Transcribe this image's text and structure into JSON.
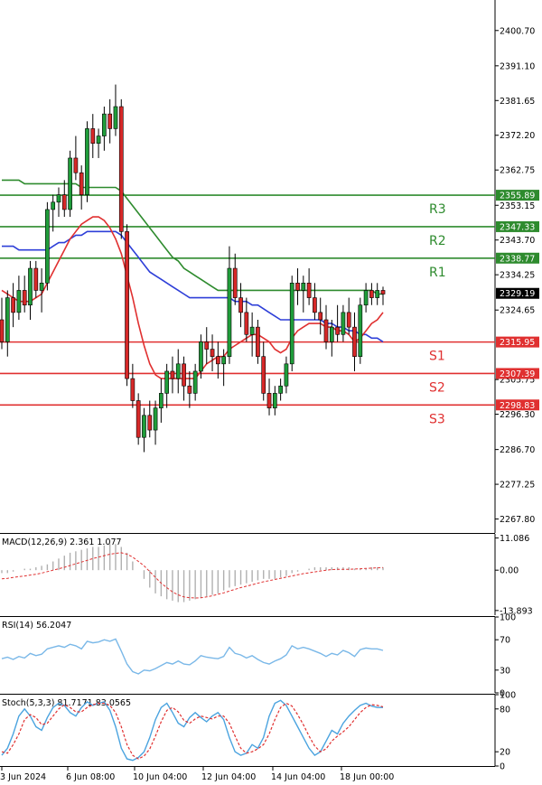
{
  "chart_data": {
    "type": "candlestick",
    "instrument_note": "",
    "price_axis": {
      "ylim": [
        2264.0,
        2409.0
      ],
      "tick_labels": [
        "2400.70",
        "2391.10",
        "2381.65",
        "2372.20",
        "2362.75",
        "2353.15",
        "2343.70",
        "2334.25",
        "2324.65",
        "2305.75",
        "2296.30",
        "2286.70",
        "2277.25",
        "2267.80"
      ],
      "tick_values": [
        2400.7,
        2391.1,
        2381.65,
        2372.2,
        2362.75,
        2353.15,
        2343.7,
        2334.25,
        2324.65,
        2305.75,
        2296.3,
        2286.7,
        2277.25,
        2267.8
      ]
    },
    "x_axis_labels": [
      "3 Jun 2024",
      "6 Jun 08:00",
      "10 Jun 04:00",
      "12 Jun 04:00",
      "14 Jun 04:00",
      "18 Jun 00:00"
    ],
    "current_price": {
      "value": 2329.19,
      "label": "2329.19",
      "color": "#000000"
    },
    "levels": [
      {
        "name": "R3",
        "value": 2355.89,
        "label": "2355.89",
        "color": "#2e8b2e"
      },
      {
        "name": "R2",
        "value": 2347.33,
        "label": "2347.33",
        "color": "#2e8b2e"
      },
      {
        "name": "R1",
        "value": 2338.77,
        "label": "2338.77",
        "color": "#2e8b2e"
      },
      {
        "name": "S1",
        "value": 2315.95,
        "label": "2315.95",
        "color": "#e03030"
      },
      {
        "name": "S2",
        "value": 2307.39,
        "label": "2307.39",
        "color": "#e03030"
      },
      {
        "name": "S3",
        "value": 2298.83,
        "label": "2298.83",
        "color": "#e03030"
      }
    ],
    "candles": [
      [
        2322,
        2328,
        2314,
        2316
      ],
      [
        2316,
        2330,
        2312,
        2328
      ],
      [
        2328,
        2332,
        2320,
        2324
      ],
      [
        2324,
        2334,
        2322,
        2330
      ],
      [
        2330,
        2334,
        2324,
        2326
      ],
      [
        2326,
        2338,
        2322,
        2336
      ],
      [
        2336,
        2338,
        2328,
        2330
      ],
      [
        2330,
        2336,
        2324,
        2332
      ],
      [
        2332,
        2354,
        2330,
        2352
      ],
      [
        2352,
        2356,
        2346,
        2354
      ],
      [
        2354,
        2358,
        2350,
        2356
      ],
      [
        2356,
        2360,
        2350,
        2352
      ],
      [
        2352,
        2368,
        2350,
        2366
      ],
      [
        2366,
        2372,
        2360,
        2362
      ],
      [
        2362,
        2364,
        2352,
        2356
      ],
      [
        2356,
        2376,
        2354,
        2374
      ],
      [
        2374,
        2378,
        2366,
        2370
      ],
      [
        2370,
        2374,
        2366,
        2372
      ],
      [
        2372,
        2380,
        2368,
        2378
      ],
      [
        2378,
        2382,
        2370,
        2374
      ],
      [
        2374,
        2386,
        2372,
        2380
      ],
      [
        2380,
        2382,
        2344,
        2346
      ],
      [
        2346,
        2348,
        2304,
        2306
      ],
      [
        2306,
        2310,
        2298,
        2300
      ],
      [
        2300,
        2302,
        2288,
        2290
      ],
      [
        2290,
        2298,
        2286,
        2296
      ],
      [
        2296,
        2300,
        2290,
        2292
      ],
      [
        2292,
        2300,
        2288,
        2298
      ],
      [
        2298,
        2306,
        2294,
        2302
      ],
      [
        2302,
        2310,
        2298,
        2308
      ],
      [
        2308,
        2312,
        2302,
        2306
      ],
      [
        2306,
        2314,
        2302,
        2310
      ],
      [
        2310,
        2312,
        2300,
        2304
      ],
      [
        2304,
        2308,
        2298,
        2302
      ],
      [
        2302,
        2310,
        2300,
        2308
      ],
      [
        2308,
        2318,
        2306,
        2316
      ],
      [
        2316,
        2320,
        2310,
        2314
      ],
      [
        2314,
        2318,
        2308,
        2312
      ],
      [
        2312,
        2316,
        2306,
        2310
      ],
      [
        2310,
        2314,
        2304,
        2312
      ],
      [
        2312,
        2342,
        2310,
        2336
      ],
      [
        2336,
        2340,
        2326,
        2328
      ],
      [
        2328,
        2332,
        2320,
        2324
      ],
      [
        2324,
        2328,
        2316,
        2318
      ],
      [
        2318,
        2324,
        2312,
        2320
      ],
      [
        2320,
        2322,
        2310,
        2312
      ],
      [
        2312,
        2316,
        2300,
        2302
      ],
      [
        2302,
        2306,
        2296,
        2298
      ],
      [
        2298,
        2304,
        2296,
        2302
      ],
      [
        2302,
        2306,
        2300,
        2304
      ],
      [
        2304,
        2312,
        2302,
        2310
      ],
      [
        2310,
        2334,
        2308,
        2332
      ],
      [
        2332,
        2336,
        2326,
        2330
      ],
      [
        2330,
        2334,
        2324,
        2332
      ],
      [
        2332,
        2336,
        2326,
        2328
      ],
      [
        2328,
        2332,
        2322,
        2324
      ],
      [
        2324,
        2328,
        2318,
        2322
      ],
      [
        2322,
        2326,
        2314,
        2316
      ],
      [
        2316,
        2322,
        2312,
        2320
      ],
      [
        2320,
        2326,
        2316,
        2318
      ],
      [
        2318,
        2326,
        2316,
        2324
      ],
      [
        2324,
        2328,
        2318,
        2320
      ],
      [
        2320,
        2324,
        2308,
        2312
      ],
      [
        2312,
        2328,
        2310,
        2326
      ],
      [
        2326,
        2332,
        2324,
        2330
      ],
      [
        2330,
        2332,
        2326,
        2328
      ],
      [
        2328,
        2332,
        2326,
        2330
      ],
      [
        2330,
        2331,
        2326,
        2329
      ]
    ],
    "ma_green": [
      2360,
      2360,
      2360,
      2360,
      2359,
      2359,
      2359,
      2359,
      2359,
      2359,
      2359,
      2359,
      2359,
      2359,
      2358,
      2358,
      2358,
      2358,
      2358,
      2358,
      2358,
      2357,
      2355,
      2353,
      2351,
      2349,
      2347,
      2345,
      2343,
      2341,
      2339,
      2338,
      2336,
      2335,
      2334,
      2333,
      2332,
      2331,
      2330,
      2330,
      2330,
      2330,
      2330,
      2330,
      2330,
      2330,
      2330,
      2330,
      2330,
      2330,
      2330,
      2330,
      2330,
      2330,
      2330,
      2330,
      2330,
      2330,
      2330,
      2330,
      2330,
      2330,
      2330,
      2330,
      2330,
      2330,
      2329,
      2329
    ],
    "ma_blue": [
      2342,
      2342,
      2342,
      2341,
      2341,
      2341,
      2341,
      2341,
      2341,
      2342,
      2343,
      2343,
      2344,
      2345,
      2345,
      2346,
      2346,
      2346,
      2346,
      2346,
      2346,
      2345,
      2343,
      2341,
      2339,
      2337,
      2335,
      2334,
      2333,
      2332,
      2331,
      2330,
      2329,
      2328,
      2328,
      2328,
      2328,
      2328,
      2328,
      2328,
      2328,
      2327,
      2327,
      2327,
      2326,
      2326,
      2325,
      2324,
      2323,
      2322,
      2322,
      2322,
      2322,
      2322,
      2322,
      2322,
      2322,
      2321,
      2321,
      2320,
      2320,
      2319,
      2319,
      2318,
      2318,
      2317,
      2317,
      2316
    ],
    "ma_red": [
      2330,
      2329,
      2328,
      2327,
      2327,
      2327,
      2328,
      2329,
      2332,
      2335,
      2338,
      2341,
      2344,
      2346,
      2348,
      2349,
      2350,
      2350,
      2349,
      2347,
      2344,
      2340,
      2334,
      2328,
      2321,
      2315,
      2310,
      2307,
      2306,
      2306,
      2306,
      2306,
      2306,
      2306,
      2306,
      2308,
      2310,
      2311,
      2312,
      2312,
      2314,
      2315,
      2316,
      2317,
      2318,
      2318,
      2317,
      2316,
      2314,
      2313,
      2314,
      2317,
      2319,
      2320,
      2321,
      2321,
      2321,
      2320,
      2320,
      2319,
      2319,
      2318,
      2316,
      2317,
      2319,
      2321,
      2322,
      2324
    ],
    "macd": {
      "label": "MACD(12,26,9) 2.361 1.077",
      "ylim": [
        -15.5,
        12.5
      ],
      "tick_labels": [
        "11.086",
        "0.00",
        "-13.893"
      ],
      "tick_values": [
        11.086,
        0.0,
        -13.893
      ],
      "hist": [
        -1,
        -1,
        -0.5,
        0,
        0.5,
        0.5,
        1,
        1.5,
        2,
        3,
        4,
        5,
        6,
        6.5,
        7,
        7.5,
        8,
        8,
        8.5,
        9,
        9,
        8,
        6,
        3,
        0,
        -3,
        -6,
        -8,
        -9,
        -10,
        -10.5,
        -11,
        -11,
        -10.5,
        -10,
        -9.5,
        -9,
        -8.5,
        -8,
        -7,
        -6,
        -5.5,
        -5,
        -4.5,
        -4,
        -3.5,
        -3,
        -3,
        -3,
        -2.5,
        -2,
        -1,
        -0.5,
        0,
        0.5,
        1,
        1,
        1,
        1,
        1,
        1,
        1,
        0.5,
        0.5,
        0.5,
        1,
        1,
        1
      ],
      "signal": [
        -3,
        -2.8,
        -2.5,
        -2.2,
        -2,
        -1.7,
        -1.4,
        -1,
        -0.5,
        0,
        0.5,
        1,
        1.6,
        2.2,
        2.8,
        3.4,
        4,
        4.5,
        5,
        5.5,
        5.8,
        6,
        5.5,
        4.5,
        3,
        1.5,
        -0.5,
        -2.5,
        -4.5,
        -6,
        -7.5,
        -8.5,
        -9.2,
        -9.5,
        -9.6,
        -9.5,
        -9.2,
        -8.8,
        -8.3,
        -7.8,
        -7.2,
        -6.6,
        -6,
        -5.5,
        -5,
        -4.5,
        -4,
        -3.6,
        -3.2,
        -2.8,
        -2.4,
        -2,
        -1.6,
        -1.2,
        -0.9,
        -0.6,
        -0.3,
        0,
        0.2,
        0.3,
        0.3,
        0.3,
        0.4,
        0.5,
        0.6,
        0.7,
        0.8,
        0.9
      ]
    },
    "rsi": {
      "label": "RSI(14) 56.2047",
      "ylim": [
        0,
        100
      ],
      "tick_labels": [
        "100",
        "70",
        "30",
        "0"
      ],
      "tick_values": [
        100,
        70,
        30,
        0
      ],
      "values": [
        45,
        47,
        44,
        48,
        46,
        52,
        49,
        51,
        58,
        60,
        62,
        60,
        64,
        62,
        58,
        68,
        66,
        67,
        70,
        68,
        71,
        55,
        38,
        28,
        25,
        30,
        29,
        32,
        36,
        40,
        38,
        42,
        38,
        37,
        42,
        49,
        47,
        46,
        45,
        48,
        60,
        52,
        50,
        46,
        49,
        44,
        40,
        38,
        42,
        45,
        50,
        62,
        58,
        60,
        58,
        55,
        52,
        48,
        52,
        50,
        56,
        53,
        48,
        57,
        59,
        58,
        58,
        56
      ],
      "color": "#7ab8e8"
    },
    "stoch": {
      "label": "Stoch(5,3,3) 81.7171 83.0565",
      "ylim": [
        0,
        100
      ],
      "tick_labels": [
        "100",
        "80",
        "20",
        "0"
      ],
      "tick_values": [
        100,
        80,
        20,
        0
      ],
      "k": [
        15,
        25,
        45,
        70,
        80,
        70,
        55,
        50,
        68,
        82,
        88,
        85,
        75,
        70,
        82,
        90,
        85,
        88,
        90,
        78,
        55,
        25,
        10,
        8,
        12,
        20,
        40,
        65,
        82,
        88,
        75,
        60,
        55,
        68,
        75,
        68,
        62,
        70,
        75,
        65,
        40,
        20,
        15,
        18,
        30,
        25,
        40,
        70,
        88,
        92,
        85,
        70,
        55,
        40,
        25,
        15,
        20,
        35,
        50,
        45,
        60,
        70,
        78,
        85,
        88,
        84,
        82,
        82
      ],
      "d": [
        20,
        18,
        30,
        45,
        65,
        72,
        68,
        58,
        60,
        70,
        80,
        86,
        82,
        76,
        76,
        82,
        86,
        88,
        88,
        85,
        75,
        55,
        30,
        15,
        10,
        14,
        24,
        42,
        62,
        78,
        82,
        76,
        64,
        60,
        66,
        70,
        68,
        66,
        70,
        70,
        60,
        42,
        25,
        18,
        20,
        24,
        30,
        45,
        65,
        82,
        88,
        84,
        72,
        58,
        42,
        28,
        20,
        24,
        35,
        42,
        48,
        55,
        65,
        75,
        82,
        86,
        85,
        83
      ],
      "k_color": "#4aa3df",
      "d_color": "#e03030"
    }
  }
}
